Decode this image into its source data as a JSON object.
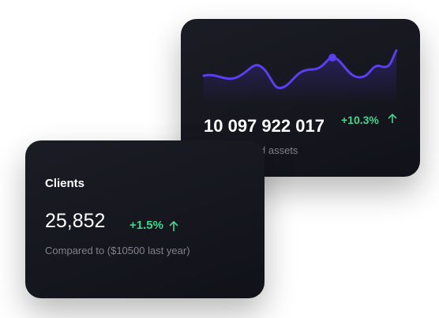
{
  "cards": [
    {
      "value": "10 097 922 017",
      "change": "+10.3%",
      "caption": "d assets"
    },
    {
      "title": "Clients",
      "value": "25,852",
      "change": "+1.5%",
      "caption": "Compared to ($10500 last year)"
    }
  ]
}
